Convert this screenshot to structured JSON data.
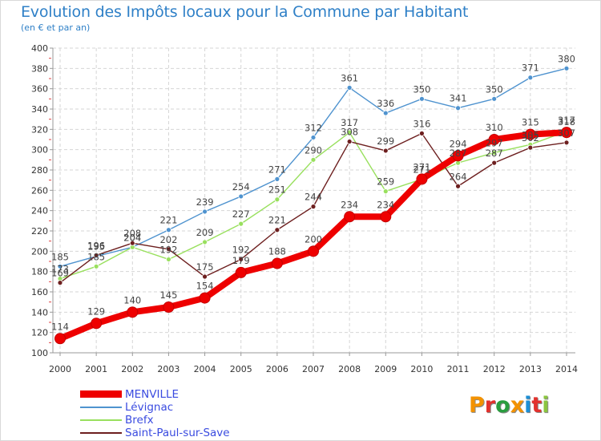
{
  "title": "Evolution des Impôts locaux pour la Commune par Habitant",
  "subtitle": "(en € et par an)",
  "logo_text": "Proxiti",
  "logo_colors": [
    "#f39200",
    "#e2312d",
    "#2a9d3f",
    "#f39200",
    "#1c8fd6",
    "#e2312d",
    "#8bc53f"
  ],
  "chart_data": {
    "type": "line",
    "title": "Evolution des Impôts locaux pour la Commune par Habitant",
    "subtitle": "(en € et par an)",
    "xlabel": "",
    "ylabel": "",
    "ylim": [
      100,
      400
    ],
    "yticks": [
      100,
      120,
      140,
      160,
      180,
      200,
      220,
      240,
      260,
      280,
      300,
      320,
      340,
      360,
      380,
      400
    ],
    "grid": true,
    "legend_position": "bottom-left",
    "categories": [
      "2000",
      "2001",
      "2002",
      "2003",
      "2004",
      "2005",
      "2006",
      "2007",
      "2008",
      "2009",
      "2010",
      "2011",
      "2012",
      "2013",
      "2014"
    ],
    "series": [
      {
        "name": "MENVILLE",
        "color": "#ee0000",
        "values": [
          114,
          129,
          140,
          145,
          154,
          179,
          188,
          200,
          234,
          234,
          271,
          294,
          310,
          315,
          317
        ]
      },
      {
        "name": "Lévignac",
        "color": "#4f93cf",
        "values": [
          185,
          195,
          204,
          221,
          239,
          254,
          271,
          312,
          361,
          336,
          350,
          341,
          350,
          371,
          380
        ]
      },
      {
        "name": "Brefx",
        "color": "#99e05e",
        "values": [
          173,
          185,
          204,
          192,
          209,
          227,
          251,
          290,
          317,
          259,
          271,
          287,
          297,
          305,
          318
        ]
      },
      {
        "name": "Saint-Paul-sur-Save",
        "color": "#6d1f1f",
        "values": [
          169,
          196,
          208,
          202,
          175,
          192,
          221,
          244,
          308,
          299,
          316,
          264,
          287,
          302,
          307
        ]
      }
    ]
  }
}
